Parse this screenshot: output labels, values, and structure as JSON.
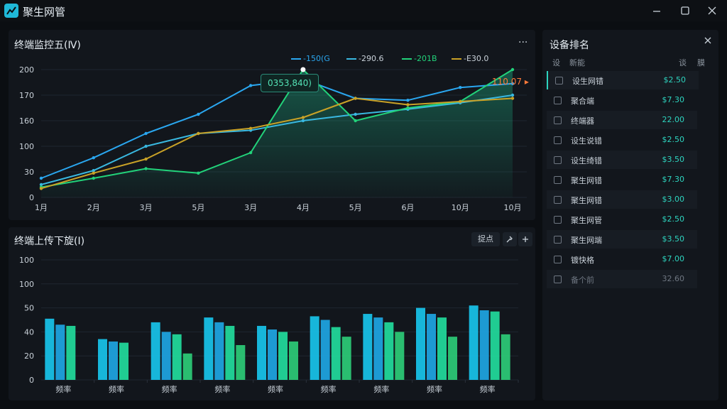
{
  "app": {
    "title": "聚生网管",
    "logo_icon": "network-logo-icon"
  },
  "window_controls": [
    "minimize-icon",
    "maximize-icon",
    "close-icon"
  ],
  "line_panel": {
    "title": "终端监控五(Ⅳ)",
    "more_label": "···",
    "tooltip": "0353,840)",
    "annotation": "110.07",
    "legend": [
      {
        "name": "-150(G",
        "color": "#2aa7f0"
      },
      {
        "name": "-290.6",
        "color": "#39b8e0"
      },
      {
        "name": "-201B",
        "color": "#22d27a"
      },
      {
        "name": "-E30.0",
        "color": "#c9a227"
      }
    ]
  },
  "bar_panel": {
    "title": "终端上传下旋(Ⅰ)",
    "tool_label": "捉点",
    "tool_icons": [
      "wrench-icon",
      "plus-icon"
    ]
  },
  "rank_panel": {
    "title": "设备排名",
    "close_icon": "close-icon",
    "headers": {
      "col1": "设",
      "col2": "新能",
      "col3": "谈",
      "col4": "膜"
    },
    "rows": [
      {
        "name": "设生网错",
        "value": "$2.50"
      },
      {
        "name": "聚合端",
        "value": "$7.30"
      },
      {
        "name": "终端器",
        "value": "22.00"
      },
      {
        "name": "设生说错",
        "value": "$2.50"
      },
      {
        "name": "设生绮错",
        "value": "$3.50"
      },
      {
        "name": "聚生网错",
        "value": "$7.30"
      },
      {
        "name": "聚生网错",
        "value": "$3.00"
      },
      {
        "name": "聚生网管",
        "value": "$2.50"
      },
      {
        "name": "聚生网端",
        "value": "$3.50"
      },
      {
        "name": "镀快格",
        "value": "$7.00"
      },
      {
        "name": "备个前",
        "value": "32.60"
      }
    ]
  },
  "chart_data": [
    {
      "type": "line",
      "ylim": [
        0,
        200
      ],
      "yticks": [
        "0",
        "30",
        "100",
        "160",
        "170",
        "200"
      ],
      "x": [
        "1月",
        "2月",
        "3月",
        "5月",
        "3月",
        "4月",
        "5月",
        "6月",
        "10月",
        "10月"
      ],
      "series": [
        {
          "name": "-150(G",
          "color": "#2aa7f0",
          "values": [
            30,
            62,
            100,
            130,
            175,
            185,
            155,
            152,
            172,
            178
          ]
        },
        {
          "name": "-290.6",
          "color": "#39b8e0",
          "values": [
            20,
            42,
            80,
            100,
            105,
            120,
            130,
            138,
            148,
            160
          ]
        },
        {
          "name": "-201B",
          "color": "#22d27a",
          "values": [
            16,
            30,
            45,
            38,
            70,
            200,
            120,
            140,
            150,
            200
          ]
        },
        {
          "name": "-E30.0",
          "color": "#c9a227",
          "values": [
            14,
            38,
            60,
            100,
            108,
            125,
            155,
            145,
            150,
            155
          ]
        }
      ]
    },
    {
      "type": "bar",
      "ylim": [
        0,
        100
      ],
      "yticks": [
        "0",
        "20",
        "40",
        "50",
        "100",
        "100"
      ],
      "categories": [
        "频率",
        "频率",
        "频率",
        "频率",
        "频率",
        "频率",
        "频率",
        "频率",
        "频率"
      ],
      "series": [
        {
          "color": "#18c8f0",
          "values": [
            51,
            34,
            48,
            52,
            45,
            53,
            55,
            60,
            62
          ]
        },
        {
          "color": "#1fa8e8",
          "values": [
            46,
            32,
            40,
            48,
            42,
            50,
            52,
            55,
            58
          ]
        },
        {
          "color": "#22e0a0",
          "values": [
            45,
            31,
            38,
            45,
            40,
            44,
            48,
            52,
            57
          ]
        },
        {
          "color": "#2ecf7a",
          "values": [
            0,
            0,
            22,
            29,
            32,
            36,
            40,
            36,
            38
          ]
        }
      ]
    }
  ]
}
